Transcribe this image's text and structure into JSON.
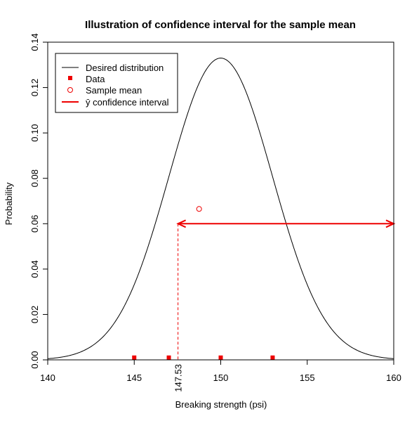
{
  "chart_data": {
    "type": "line",
    "title": "Illustration of confidence interval for the sample mean",
    "xlabel": "Breaking strength (psi)",
    "ylabel": "Probability",
    "xlim": [
      140,
      160
    ],
    "ylim": [
      0,
      0.14
    ],
    "x_ticks": [
      "140",
      "145",
      "150",
      "155",
      "160"
    ],
    "y_ticks": [
      "0.00",
      "0.02",
      "0.04",
      "0.06",
      "0.08",
      "0.10",
      "0.12",
      "0.14"
    ],
    "distribution": {
      "name": "Desired distribution",
      "mean": 150,
      "sd": 3,
      "color": "#000000"
    },
    "data_points": {
      "name": "Data",
      "x": [
        145,
        147,
        150,
        153
      ],
      "y": [
        0.001,
        0.001,
        0.001,
        0.001
      ],
      "color": "#ee0000"
    },
    "sample_mean": {
      "name": "Sample mean",
      "x": 148.75,
      "y": 0.0665,
      "color": "#ee0000"
    },
    "confidence_interval": {
      "name": "ȳ confidence interval",
      "lower": 147.53,
      "upper": 160,
      "y": 0.06,
      "lower_label": "147.53",
      "color": "#ee0000"
    },
    "legend": {
      "position": "top-left",
      "entries": [
        "Desired distribution",
        "Data",
        "Sample mean",
        "ȳ confidence interval"
      ]
    }
  }
}
